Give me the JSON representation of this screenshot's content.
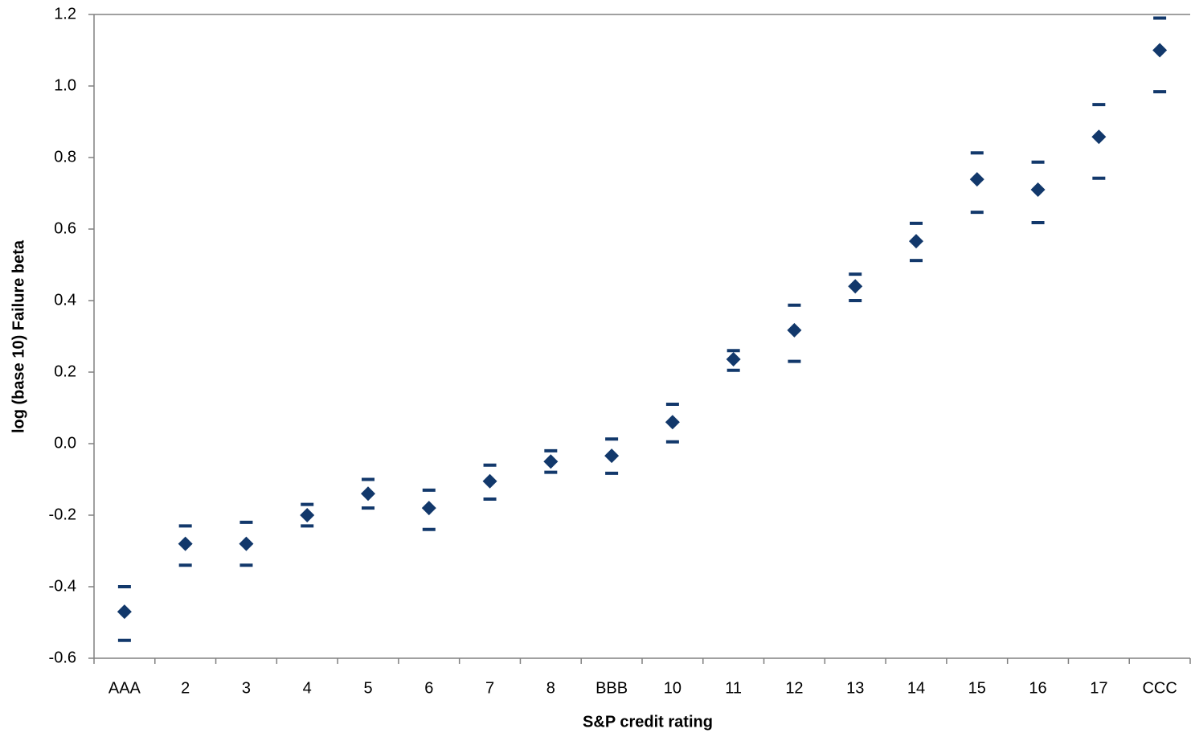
{
  "chart_data": {
    "type": "errorbar",
    "xlabel": "S&P credit rating",
    "ylabel": "log (base 10) Failure beta",
    "categories": [
      "AAA",
      "2",
      "3",
      "4",
      "5",
      "6",
      "7",
      "8",
      "BBB",
      "10",
      "11",
      "12",
      "13",
      "14",
      "15",
      "16",
      "17",
      "CCC"
    ],
    "values": [
      -0.47,
      -0.28,
      -0.28,
      -0.2,
      -0.14,
      -0.18,
      -0.105,
      -0.05,
      -0.034,
      0.06,
      0.236,
      0.317,
      0.44,
      0.566,
      0.739,
      0.71,
      0.858,
      1.1
    ],
    "upper": [
      -0.4,
      -0.23,
      -0.22,
      -0.17,
      -0.1,
      -0.13,
      -0.06,
      -0.02,
      0.013,
      0.11,
      0.26,
      0.387,
      0.474,
      0.616,
      0.813,
      0.787,
      0.948,
      1.19
    ],
    "lower": [
      -0.55,
      -0.34,
      -0.34,
      -0.23,
      -0.18,
      -0.24,
      -0.155,
      -0.08,
      -0.083,
      0.005,
      0.205,
      0.23,
      0.4,
      0.512,
      0.647,
      0.618,
      0.742,
      0.984
    ],
    "color": "#12386b",
    "ylim": [
      -0.6,
      1.2
    ],
    "yticks": [
      {
        "value": 1.2,
        "label": "1.2"
      },
      {
        "value": 1.0,
        "label": "1.0"
      },
      0.8,
      0.6,
      0.4,
      0.2,
      {
        "value": 0,
        "label": "0.0"
      },
      -0.2,
      -0.4,
      -0.6
    ]
  }
}
